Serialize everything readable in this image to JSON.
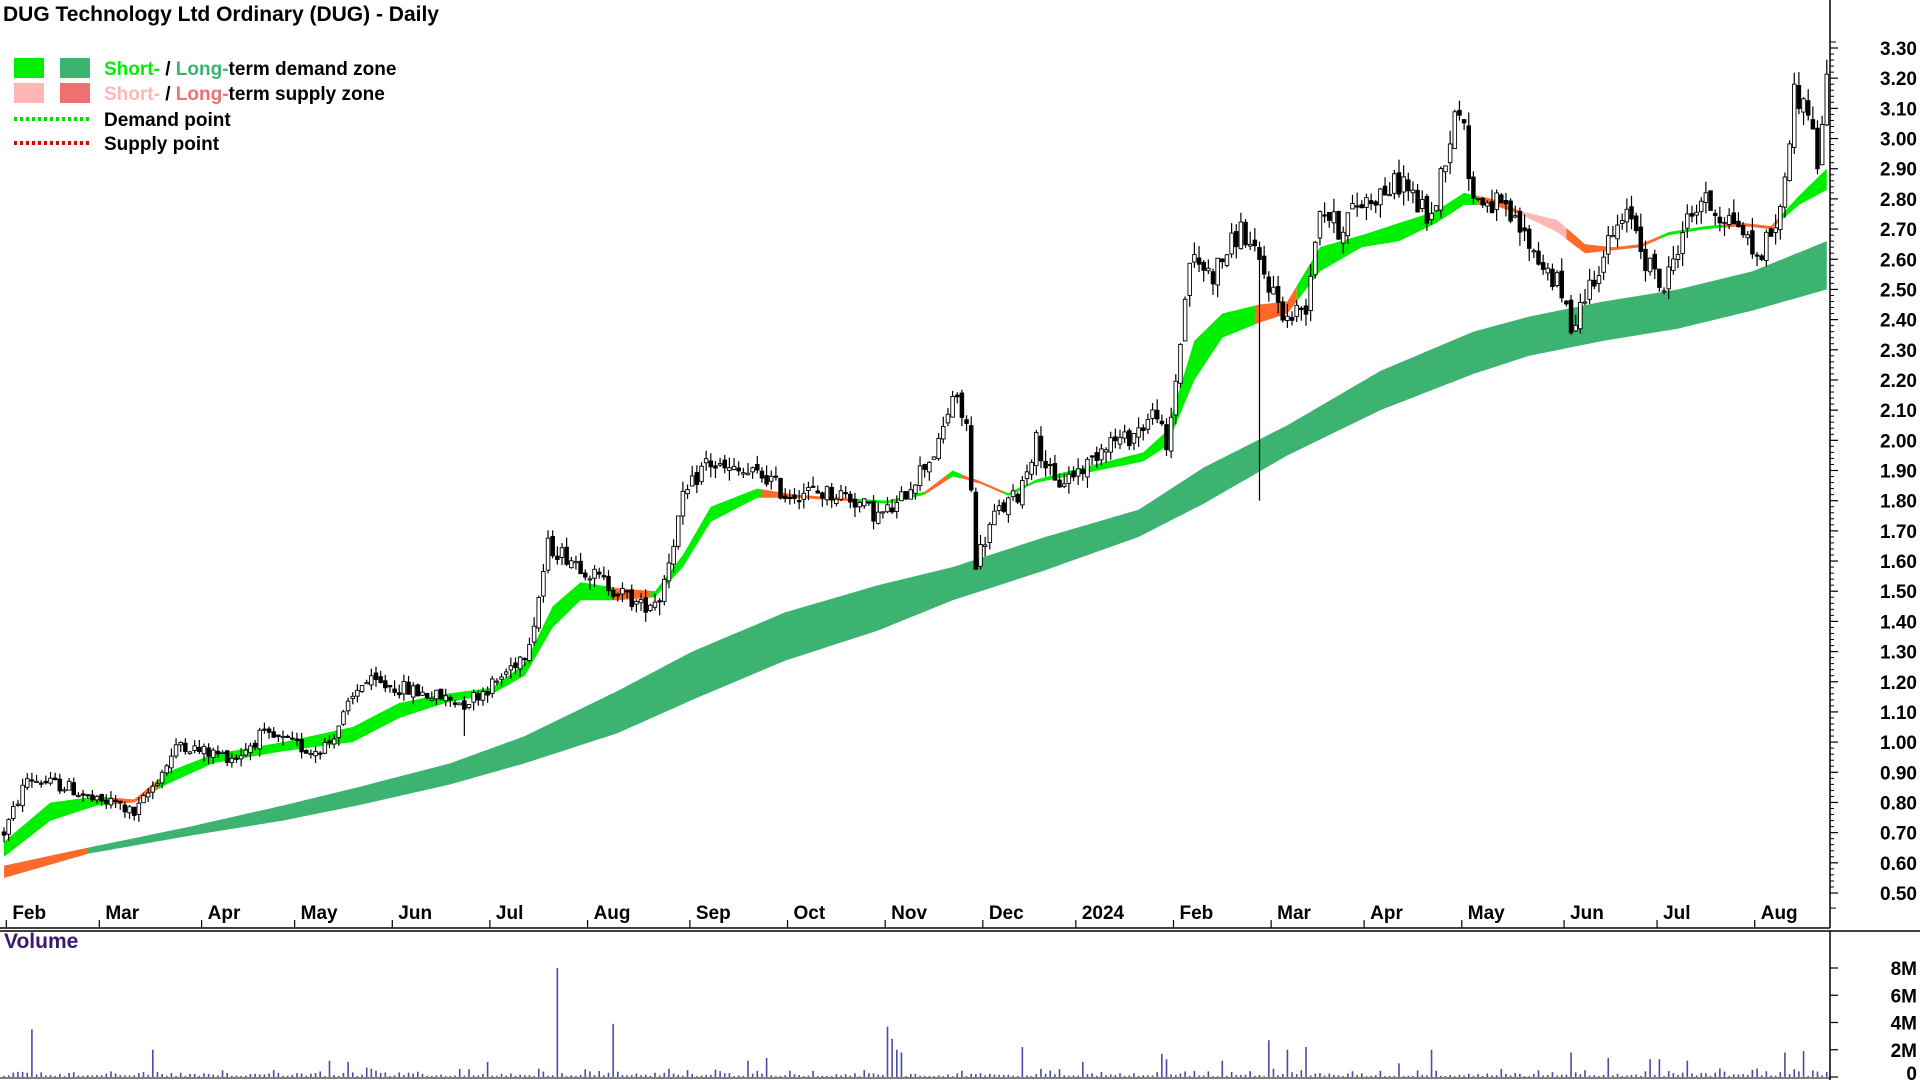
{
  "chart_data": {
    "type": "candlestick",
    "title": "DUG Technology Ltd Ordinary (DUG) - Daily",
    "legend": {
      "row1": {
        "short": "Short-",
        "sep": " / ",
        "long": "Long-",
        "rest": "term demand zone"
      },
      "row2": {
        "short": "Short-",
        "sep": " / ",
        "long": "Long-",
        "rest": "term supply zone"
      },
      "row3": "Demand point",
      "row4": "Supply point"
    },
    "colors": {
      "short_demand": "#00ee00",
      "long_demand": "#3cb371",
      "short_supply": "#ffb6b6",
      "long_supply": "#f07070",
      "demand_point": "#00dd00",
      "supply_point": "#dd0000",
      "transition": "#ff6a2a",
      "volume_bar": "#4a4aa8",
      "volume_title": "#3a1a6e"
    },
    "x_labels": [
      "Feb",
      "Mar",
      "Apr",
      "May",
      "Jun",
      "Jul",
      "Aug",
      "Sep",
      "Oct",
      "Nov",
      "Dec",
      "2024",
      "Feb",
      "Mar",
      "Apr",
      "May",
      "Jun",
      "Jul",
      "Aug"
    ],
    "x_label_pos": [
      0.5,
      20.5,
      42.5,
      62.5,
      83.5,
      104.5,
      125.5,
      147.5,
      168.5,
      189.5,
      210.5,
      230.5,
      251.5,
      272.5,
      292.5,
      313.5,
      335.5,
      355.5,
      376.5
    ],
    "y_ticks": [
      0.5,
      0.6,
      0.7,
      0.8,
      0.9,
      1.0,
      1.1,
      1.2,
      1.3,
      1.4,
      1.5,
      1.6,
      1.7,
      1.8,
      1.9,
      2.0,
      2.1,
      2.2,
      2.3,
      2.4,
      2.5,
      2.6,
      2.7,
      2.8,
      2.9,
      3.0,
      3.1,
      3.2,
      3.3
    ],
    "y_tick_labels": [
      "0.50",
      "0.60",
      "0.70",
      "0.80",
      "0.90",
      "1.00",
      "1.10",
      "1.20",
      "1.30",
      "1.40",
      "1.50",
      "1.60",
      "1.70",
      "1.80",
      "1.90",
      "2.00",
      "2.10",
      "2.20",
      "2.30",
      "2.40",
      "2.50",
      "2.60",
      "2.70",
      "2.80",
      "2.90",
      "3.00",
      "3.10",
      "3.20",
      "3.30"
    ],
    "ylim": [
      0.45,
      3.35
    ],
    "xlim": [
      -1,
      395
    ],
    "price_anchors": [
      [
        0,
        0.7
      ],
      [
        5,
        0.88
      ],
      [
        14,
        0.85
      ],
      [
        20,
        0.8
      ],
      [
        24,
        0.8
      ],
      [
        28,
        0.76
      ],
      [
        31,
        0.83
      ],
      [
        38,
        1.0
      ],
      [
        42,
        0.97
      ],
      [
        50,
        0.95
      ],
      [
        55,
        1.02
      ],
      [
        61,
        1.0
      ],
      [
        66,
        0.97
      ],
      [
        70,
        1.0
      ],
      [
        77,
        1.2
      ],
      [
        85,
        1.18
      ],
      [
        96,
        1.14
      ],
      [
        99,
        1.13
      ],
      [
        106,
        1.2
      ],
      [
        112,
        1.3
      ],
      [
        114,
        1.4
      ],
      [
        117,
        1.65
      ],
      [
        123,
        1.6
      ],
      [
        127,
        1.55
      ],
      [
        137,
        1.45
      ],
      [
        141,
        1.48
      ],
      [
        146,
        1.8
      ],
      [
        151,
        1.93
      ],
      [
        155,
        1.9
      ],
      [
        164,
        1.88
      ],
      [
        168,
        1.82
      ],
      [
        172,
        1.83
      ],
      [
        181,
        1.82
      ],
      [
        188,
        1.75
      ],
      [
        192,
        1.78
      ],
      [
        196,
        1.88
      ],
      [
        201,
        1.98
      ],
      [
        204,
        2.15
      ],
      [
        207,
        2.05
      ],
      [
        209,
        1.6
      ],
      [
        213,
        1.75
      ],
      [
        218,
        1.82
      ],
      [
        222,
        2.0
      ],
      [
        226,
        1.85
      ],
      [
        233,
        1.92
      ],
      [
        237,
        2.0
      ],
      [
        241,
        2.0
      ],
      [
        245,
        2.05
      ],
      [
        248,
        2.1
      ],
      [
        250,
        1.95
      ],
      [
        252,
        2.2
      ],
      [
        255,
        2.6
      ],
      [
        260,
        2.55
      ],
      [
        266,
        2.7
      ],
      [
        271,
        2.55
      ],
      [
        276,
        2.4
      ],
      [
        280,
        2.45
      ],
      [
        283,
        2.78
      ],
      [
        287,
        2.7
      ],
      [
        291,
        2.78
      ],
      [
        296,
        2.82
      ],
      [
        301,
        2.86
      ],
      [
        304,
        2.78
      ],
      [
        307,
        2.73
      ],
      [
        310,
        2.95
      ],
      [
        313,
        3.12
      ],
      [
        316,
        2.8
      ],
      [
        321,
        2.78
      ],
      [
        326,
        2.7
      ],
      [
        330,
        2.6
      ],
      [
        334,
        2.52
      ],
      [
        337,
        2.38
      ],
      [
        342,
        2.55
      ],
      [
        346,
        2.68
      ],
      [
        350,
        2.75
      ],
      [
        353,
        2.6
      ],
      [
        357,
        2.5
      ],
      [
        361,
        2.7
      ],
      [
        365,
        2.8
      ],
      [
        369,
        2.75
      ],
      [
        373,
        2.72
      ],
      [
        377,
        2.6
      ],
      [
        382,
        2.75
      ],
      [
        385,
        3.15
      ],
      [
        388,
        3.1
      ],
      [
        390,
        2.92
      ],
      [
        392,
        3.18
      ]
    ],
    "spikes": [
      {
        "i": 209,
        "low": 1.58
      },
      {
        "i": 270,
        "low": 1.8
      },
      {
        "i": 337,
        "low": 2.35
      },
      {
        "i": 28,
        "low": 0.74
      },
      {
        "i": 99,
        "low": 1.02
      },
      {
        "i": 141,
        "low": 1.42
      }
    ],
    "short_zone": [
      [
        0,
        0.62,
        0.67
      ],
      [
        10,
        0.74,
        0.8
      ],
      [
        20,
        0.79,
        0.82
      ],
      [
        28,
        0.8,
        0.81
      ],
      [
        35,
        0.86,
        0.9
      ],
      [
        45,
        0.93,
        0.96
      ],
      [
        60,
        0.97,
        1.0
      ],
      [
        75,
        1.0,
        1.05
      ],
      [
        85,
        1.08,
        1.13
      ],
      [
        95,
        1.13,
        1.16
      ],
      [
        105,
        1.16,
        1.18
      ],
      [
        112,
        1.22,
        1.26
      ],
      [
        118,
        1.38,
        1.45
      ],
      [
        124,
        1.47,
        1.53
      ],
      [
        132,
        1.47,
        1.51
      ],
      [
        140,
        1.48,
        1.5
      ],
      [
        146,
        1.58,
        1.62
      ],
      [
        152,
        1.73,
        1.78
      ],
      [
        162,
        1.81,
        1.84
      ],
      [
        170,
        1.81,
        1.82
      ],
      [
        180,
        1.8,
        1.81
      ],
      [
        190,
        1.79,
        1.8
      ],
      [
        198,
        1.82,
        1.83
      ],
      [
        204,
        1.88,
        1.9
      ],
      [
        210,
        1.86,
        1.86
      ],
      [
        216,
        1.82,
        1.82
      ],
      [
        222,
        1.86,
        1.87
      ],
      [
        232,
        1.89,
        1.91
      ],
      [
        245,
        1.93,
        1.96
      ],
      [
        250,
        1.98,
        2.03
      ],
      [
        256,
        2.2,
        2.33
      ],
      [
        262,
        2.34,
        2.42
      ],
      [
        270,
        2.39,
        2.45
      ],
      [
        276,
        2.42,
        2.46
      ],
      [
        283,
        2.56,
        2.64
      ],
      [
        292,
        2.64,
        2.68
      ],
      [
        300,
        2.66,
        2.72
      ],
      [
        308,
        2.72,
        2.76
      ],
      [
        314,
        2.78,
        2.82
      ],
      [
        320,
        2.78,
        2.8
      ],
      [
        326,
        2.75,
        2.76
      ],
      [
        334,
        2.69,
        2.73
      ],
      [
        340,
        2.62,
        2.65
      ],
      [
        346,
        2.63,
        2.64
      ],
      [
        352,
        2.64,
        2.65
      ],
      [
        358,
        2.68,
        2.69
      ],
      [
        366,
        2.7,
        2.71
      ],
      [
        374,
        2.71,
        2.72
      ],
      [
        380,
        2.7,
        2.71
      ],
      [
        386,
        2.78,
        2.81
      ],
      [
        392,
        2.83,
        2.9
      ]
    ],
    "short_zone_segments": [
      {
        "from": 0,
        "to": 23,
        "kind": "demand"
      },
      {
        "from": 23,
        "to": 33,
        "kind": "transition"
      },
      {
        "from": 33,
        "to": 131,
        "kind": "demand"
      },
      {
        "from": 131,
        "to": 139,
        "kind": "transition"
      },
      {
        "from": 139,
        "to": 163,
        "kind": "demand"
      },
      {
        "from": 163,
        "to": 183,
        "kind": "transition"
      },
      {
        "from": 183,
        "to": 198,
        "kind": "demand"
      },
      {
        "from": 198,
        "to": 203,
        "kind": "transition"
      },
      {
        "from": 203,
        "to": 206,
        "kind": "demand"
      },
      {
        "from": 206,
        "to": 215,
        "kind": "transition"
      },
      {
        "from": 215,
        "to": 269,
        "kind": "demand"
      },
      {
        "from": 269,
        "to": 278,
        "kind": "transition"
      },
      {
        "from": 278,
        "to": 317,
        "kind": "demand"
      },
      {
        "from": 317,
        "to": 326,
        "kind": "transition"
      },
      {
        "from": 326,
        "to": 336,
        "kind": "supply"
      },
      {
        "from": 336,
        "to": 356,
        "kind": "transition"
      },
      {
        "from": 356,
        "to": 370,
        "kind": "demand"
      },
      {
        "from": 370,
        "to": 382,
        "kind": "transition"
      },
      {
        "from": 382,
        "to": 392,
        "kind": "demand"
      }
    ],
    "long_zone": [
      [
        0,
        0.55,
        0.59
      ],
      [
        18,
        0.63,
        0.65
      ],
      [
        40,
        0.69,
        0.72
      ],
      [
        60,
        0.74,
        0.79
      ],
      [
        76,
        0.79,
        0.85
      ],
      [
        96,
        0.86,
        0.93
      ],
      [
        112,
        0.93,
        1.02
      ],
      [
        132,
        1.03,
        1.17
      ],
      [
        148,
        1.14,
        1.3
      ],
      [
        168,
        1.27,
        1.43
      ],
      [
        188,
        1.37,
        1.52
      ],
      [
        204,
        1.47,
        1.58
      ],
      [
        224,
        1.57,
        1.68
      ],
      [
        244,
        1.68,
        1.77
      ],
      [
        258,
        1.79,
        1.91
      ],
      [
        276,
        1.95,
        2.05
      ],
      [
        296,
        2.1,
        2.23
      ],
      [
        316,
        2.22,
        2.36
      ],
      [
        328,
        2.28,
        2.41
      ],
      [
        344,
        2.33,
        2.46
      ],
      [
        360,
        2.37,
        2.5
      ],
      [
        376,
        2.43,
        2.56
      ],
      [
        392,
        2.5,
        2.66
      ]
    ],
    "volume": {
      "label": "Volume",
      "y_ticks": [
        0,
        2000000,
        4000000,
        6000000,
        8000000
      ],
      "y_tick_labels": [
        "0",
        "2M",
        "4M",
        "6M",
        "8M"
      ],
      "ylim": [
        0,
        8000000
      ],
      "spikes": [
        [
          6,
          3500000
        ],
        [
          32,
          2000000
        ],
        [
          119,
          8000000
        ],
        [
          131,
          3900000
        ],
        [
          190,
          3700000
        ],
        [
          191,
          2800000
        ],
        [
          192,
          2000000
        ],
        [
          193,
          1800000
        ],
        [
          219,
          2200000
        ],
        [
          249,
          1700000
        ],
        [
          250,
          1300000
        ],
        [
          272,
          2700000
        ],
        [
          276,
          2000000
        ],
        [
          280,
          2200000
        ],
        [
          307,
          2000000
        ],
        [
          337,
          1800000
        ],
        [
          345,
          1400000
        ],
        [
          356,
          1300000
        ],
        [
          383,
          1800000
        ],
        [
          387,
          1900000
        ],
        [
          354,
          1300000
        ],
        [
          362,
          1200000
        ],
        [
          104,
          1100000
        ],
        [
          70,
          1200000
        ],
        [
          74,
          1100000
        ],
        [
          160,
          1200000
        ],
        [
          164,
          1400000
        ],
        [
          232,
          1100000
        ],
        [
          262,
          1200000
        ],
        [
          300,
          1000000
        ]
      ]
    }
  }
}
